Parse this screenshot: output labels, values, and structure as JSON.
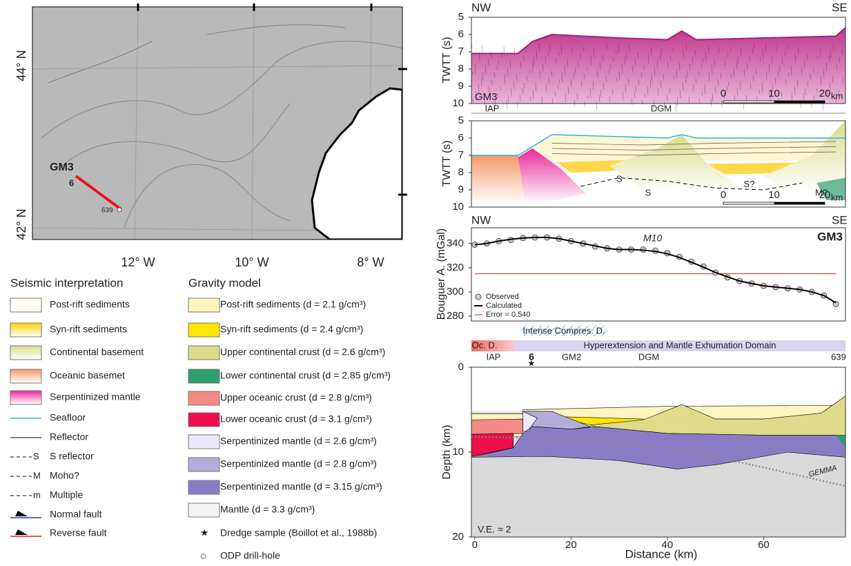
{
  "map": {
    "profile_label": "GM3",
    "dredge_label": "6",
    "drill_label": "639",
    "lat_labels": [
      "44° N",
      "42° N"
    ],
    "lon_labels": [
      "12° W",
      "10° W",
      "8° W"
    ]
  },
  "seismic_legend": {
    "title": "Seismic interpretation",
    "items": [
      "Post-rift sediments",
      "Syn-rift sediments",
      "Continental basement",
      "Oceanic basemet",
      "Serpentinized mantle",
      "Seafloor",
      "Reflector",
      "S reflector",
      "Moho?",
      "Multiple",
      "Normal fault",
      "Reverse fault"
    ],
    "symbols": [
      "S",
      "M",
      "m"
    ]
  },
  "gravity_legend": {
    "title": "Gravity model",
    "items": [
      {
        "label": "Post-rift sediments (d = 2.1 g/cm³)",
        "color": "#fff6bf"
      },
      {
        "label": "Syn-rift sediments (d = 2.4 g/cm³)",
        "color": "#ffe600"
      },
      {
        "label": "Upper continental crust (d = 2.6 g/cm³)",
        "color": "#dcdc8a"
      },
      {
        "label": "Lower continental crust (d = 2.85 g/cm³)",
        "color": "#2e9e70"
      },
      {
        "label": "Upper oceanic crust (d = 2.8 g/cm³)",
        "color": "#f28a86"
      },
      {
        "label": "Lower oceanic crust (d = 3.1 g/cm³)",
        "color": "#ec0f4b"
      },
      {
        "label": "Serpentinized mantle (d = 2.6 g/cm³)",
        "color": "#ebe8f7"
      },
      {
        "label": "Serpentinized mantle (d = 2.8 g/cm³)",
        "color": "#b3acd9"
      },
      {
        "label": "Serpentinized mantle (d = 3.15 g/cm³)",
        "color": "#8a7cc4"
      },
      {
        "label": "Mantle (d = 3.3 g/cm³)",
        "color": "#f3f3f3"
      }
    ],
    "dredge": "Dredge sample (Boillot et al., 1988b)",
    "drill": "ODP drill-hole"
  },
  "seismic_panel": {
    "nw": "NW",
    "se": "SE",
    "ylabel": "TWTT (s)",
    "ylim": [
      5,
      10
    ],
    "yticks": [
      5,
      6,
      7,
      8,
      9,
      10
    ],
    "line_label": "GM3",
    "scale_ticks": [
      0,
      10,
      20
    ],
    "scale_unit": "km"
  },
  "interpretation_panel": {
    "ylabel": "TWTT (s)",
    "ylim": [
      5,
      10
    ],
    "yticks": [
      5,
      6,
      7,
      8,
      9,
      10
    ],
    "domains": [
      "IAP",
      "DGM"
    ],
    "labels": [
      "S",
      "S",
      "S?",
      "M?"
    ],
    "scale_ticks": [
      0,
      10,
      20
    ],
    "scale_unit": "km"
  },
  "gravity_panel": {
    "nw": "NW",
    "se": "SE",
    "ylabel": "Bouguer A. (mGal)",
    "ylim": [
      276,
      353
    ],
    "yticks": [
      280,
      300,
      320,
      340
    ],
    "profile": "GM3",
    "anomaly": "M10",
    "legend": [
      "Observed",
      "Calculated",
      "Error = 0.540"
    ],
    "x": [
      0,
      2.5,
      5,
      7.5,
      10,
      12.5,
      15,
      17.5,
      20,
      22.5,
      25,
      27.5,
      30,
      32.5,
      35,
      37.5,
      40,
      42.5,
      45,
      47.5,
      50,
      52.5,
      55,
      57.5,
      60,
      62.5,
      65,
      67.5,
      70,
      72.5,
      75
    ],
    "observed": [
      339,
      340,
      342,
      343,
      344.5,
      345,
      345,
      344,
      342,
      340,
      337.5,
      336,
      335,
      335,
      335,
      334,
      332,
      329,
      325,
      321,
      316,
      312,
      309,
      307,
      305,
      304,
      303,
      302,
      300,
      297,
      290
    ],
    "calculated": [
      339,
      340,
      342,
      343.5,
      344.5,
      345,
      345,
      344,
      342,
      340,
      338,
      336,
      335,
      335,
      334.5,
      333.5,
      331.5,
      328.5,
      324.5,
      320.5,
      316,
      312.5,
      309,
      307,
      305,
      304,
      303,
      302,
      300,
      297,
      291
    ],
    "error": [
      315,
      315,
      315,
      315,
      315,
      315,
      315,
      315,
      315,
      315,
      315,
      315,
      315,
      315,
      315,
      315,
      315,
      315,
      315,
      315,
      315,
      315,
      315,
      315,
      315,
      315,
      315,
      315,
      315,
      315,
      315
    ]
  },
  "depth_panel": {
    "domains": {
      "compression": "Intense Compres. D.",
      "oceanic": "Oc. D.",
      "hyper": "Hyperextension and Mantle Exhumation Domain"
    },
    "sites": [
      "IAP",
      "6",
      "GM2",
      "DGM",
      "639"
    ],
    "ylabel": "Depth (km)",
    "xlabel": "Distance (km)",
    "ylim": [
      0,
      20
    ],
    "yticks": [
      0,
      10,
      20
    ],
    "xlim": [
      -0.7,
      77
    ],
    "xticks": [
      0,
      20,
      40,
      60
    ],
    "ve": "V.E. ≈ 2",
    "gemma": "GEMMA"
  }
}
